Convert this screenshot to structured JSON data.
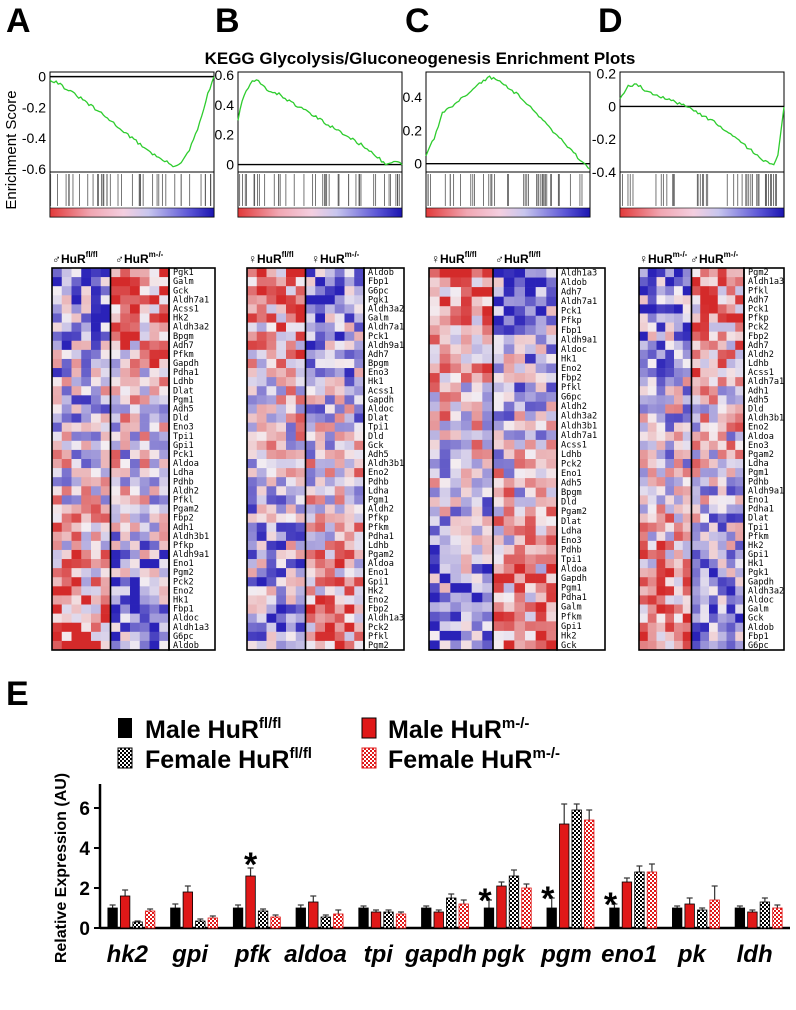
{
  "figure": {
    "title": "KEGG Glycolysis/Gluconeogenesis Enrichment Plots",
    "panel_labels": [
      "A",
      "B",
      "C",
      "D",
      "E"
    ],
    "enrichment_ylabel": "Enrichment Score"
  },
  "chart_data": [
    {
      "type": "line",
      "panel": "A",
      "title": "KEGG Glycolysis/Gluconeogenesis Enrichment Plots",
      "ylabel": "Enrichment Score",
      "ylim": [
        -0.62,
        0.03
      ],
      "yticks": [
        "0",
        "-0.2",
        "-0.4",
        "-0.6"
      ],
      "ytick_values": [
        0,
        -0.2,
        -0.4,
        -0.6
      ],
      "curve_x": [
        0,
        0.05,
        0.1,
        0.2,
        0.35,
        0.5,
        0.65,
        0.75,
        0.8,
        0.84,
        0.88,
        0.92,
        0.96,
        1.0
      ],
      "curve_y": [
        -0.02,
        -0.04,
        -0.08,
        -0.15,
        -0.27,
        -0.4,
        -0.52,
        -0.58,
        -0.56,
        -0.5,
        -0.4,
        -0.28,
        -0.12,
        0
      ]
    },
    {
      "type": "line",
      "panel": "B",
      "ylim": [
        -0.05,
        0.62
      ],
      "yticks": [
        "0.6",
        "0.4",
        "0.2",
        "0"
      ],
      "ytick_values": [
        0.6,
        0.4,
        0.2,
        0
      ],
      "curve_x": [
        0,
        0.03,
        0.08,
        0.12,
        0.18,
        0.25,
        0.35,
        0.5,
        0.65,
        0.8,
        0.9,
        0.95,
        1.0
      ],
      "curve_y": [
        0.3,
        0.45,
        0.55,
        0.56,
        0.5,
        0.47,
        0.4,
        0.3,
        0.2,
        0.1,
        0.0,
        0.02,
        0
      ],
      "zero": 0
    },
    {
      "type": "line",
      "panel": "C",
      "ylim": [
        -0.05,
        0.55
      ],
      "yticks": [
        "0.4",
        "0.2",
        "0"
      ],
      "ytick_values": [
        0.4,
        0.2,
        0
      ],
      "curve_x": [
        0,
        0.05,
        0.1,
        0.2,
        0.25,
        0.3,
        0.38,
        0.45,
        0.55,
        0.65,
        0.75,
        0.85,
        0.95,
        1.0
      ],
      "curve_y": [
        0.05,
        0.15,
        0.3,
        0.38,
        0.42,
        0.46,
        0.52,
        0.5,
        0.42,
        0.33,
        0.22,
        0.12,
        0.01,
        -0.03
      ],
      "zero": 0
    },
    {
      "type": "line",
      "panel": "D",
      "ylim": [
        -0.4,
        0.21
      ],
      "yticks": [
        "0.2",
        "0",
        "-0.2",
        "-0.4"
      ],
      "ytick_values": [
        0.2,
        0,
        -0.2,
        -0.4
      ],
      "curve_x": [
        0,
        0.05,
        0.1,
        0.15,
        0.25,
        0.4,
        0.55,
        0.7,
        0.8,
        0.88,
        0.93,
        0.96,
        1.0
      ],
      "curve_y": [
        0.05,
        0.12,
        0.14,
        0.1,
        0.06,
        0.0,
        -0.08,
        -0.18,
        -0.27,
        -0.33,
        -0.36,
        -0.32,
        0
      ],
      "zero": 0
    },
    {
      "type": "bar",
      "panel": "E",
      "title": "",
      "xlabel": "",
      "ylabel": "Relative Expression (AU)",
      "ylim": [
        0,
        7
      ],
      "yticks": [
        "0",
        "2",
        "4",
        "6"
      ],
      "ytick_values": [
        0,
        2,
        4,
        6
      ],
      "categories": [
        "hk2",
        "gpi",
        "pfk",
        "aldoa",
        "tpi",
        "gapdh",
        "pgk",
        "pgm",
        "eno1",
        "pk",
        "ldh"
      ],
      "series": [
        {
          "name": "Male HuR fl/fl",
          "values": [
            1.0,
            1.0,
            1.0,
            1.0,
            1.0,
            1.0,
            1.0,
            1.0,
            1.0,
            1.0,
            1.0
          ],
          "errors": [
            0.15,
            0.2,
            0.15,
            0.15,
            0.1,
            0.1,
            0.4,
            0.5,
            0.2,
            0.1,
            0.1
          ]
        },
        {
          "name": "Male HuR m-/-",
          "values": [
            1.6,
            1.8,
            2.6,
            1.3,
            0.8,
            0.8,
            2.1,
            5.2,
            2.3,
            1.2,
            0.8
          ],
          "errors": [
            0.3,
            0.3,
            0.4,
            0.3,
            0.1,
            0.1,
            0.2,
            1.0,
            0.2,
            0.3,
            0.1
          ]
        },
        {
          "name": "Female HuR fl/fl",
          "values": [
            0.3,
            0.35,
            0.85,
            0.55,
            0.8,
            1.5,
            2.6,
            5.9,
            2.8,
            0.9,
            1.3
          ],
          "errors": [
            0.05,
            0.1,
            0.1,
            0.1,
            0.1,
            0.2,
            0.3,
            0.3,
            0.3,
            0.1,
            0.2
          ]
        },
        {
          "name": "Female HuR m-/-",
          "values": [
            0.85,
            0.5,
            0.55,
            0.7,
            0.7,
            1.2,
            2.0,
            5.4,
            2.8,
            1.4,
            1.0
          ],
          "errors": [
            0.1,
            0.1,
            0.1,
            0.2,
            0.1,
            0.2,
            0.2,
            0.5,
            0.4,
            0.7,
            0.15
          ]
        }
      ],
      "significance": [
        {
          "category": "pfk",
          "label": "*"
        },
        {
          "category": "pgk",
          "label": "*"
        },
        {
          "category": "pgm",
          "label": "*"
        },
        {
          "category": "eno1",
          "label": "*"
        }
      ]
    }
  ],
  "heatmaps": [
    {
      "panel": "A",
      "groups": [
        {
          "sym": "♂",
          "name": "HuR",
          "sup": "fl/fl"
        },
        {
          "sym": "♂",
          "name": "HuR",
          "sup": "m-/-"
        }
      ],
      "genes": [
        "Pgk1",
        "Galm",
        "Gck",
        "Aldh7a1",
        "Acss1",
        "Hk2",
        "Aldh3a2",
        "Bpgm",
        "Adh7",
        "Pfkm",
        "Gapdh",
        "Pdha1",
        "Ldhb",
        "Dlat",
        "Pgm1",
        "Adh5",
        "Dld",
        "Eno3",
        "Tpi1",
        "Gpi1",
        "Pck1",
        "Aldoa",
        "Ldha",
        "Pdhb",
        "Aldh2",
        "Pfkl",
        "Pgam2",
        "Fbp2",
        "Adh1",
        "Aldh3b1",
        "Pfkp",
        "Aldh9a1",
        "Eno1",
        "Pgm2",
        "Pck2",
        "Eno2",
        "Hk1",
        "Fbp1",
        "Aldoc",
        "Aldh1a3",
        "G6pc",
        "Aldob"
      ]
    },
    {
      "panel": "B",
      "groups": [
        {
          "sym": "♀",
          "name": "HuR",
          "sup": "fl/fl"
        },
        {
          "sym": "♀",
          "name": "HuR",
          "sup": "m-/-"
        }
      ],
      "genes": [
        "Aldob",
        "Fbp1",
        "G6pc",
        "Pgk1",
        "Aldh3a2",
        "Galm",
        "Aldh7a1",
        "Pck1",
        "Aldh9a1",
        "Adh7",
        "Bpgm",
        "Eno3",
        "Hk1",
        "Acss1",
        "Gapdh",
        "Aldoc",
        "Dlat",
        "Tpi1",
        "Dld",
        "Gck",
        "Adh5",
        "Aldh3b1",
        "Eno2",
        "Pdhb",
        "Ldha",
        "Pgm1",
        "Aldh2",
        "Pfkp",
        "Pfkm",
        "Pdha1",
        "Ldhb",
        "Pgam2",
        "Aldoa",
        "Eno1",
        "Gpi1",
        "Hk2",
        "Eno2",
        "Fbp2",
        "Aldh1a3",
        "Pck2",
        "Pfkl",
        "Pgm2"
      ]
    },
    {
      "panel": "C",
      "groups": [
        {
          "sym": "♀",
          "name": "HuR",
          "sup": "fl/fl"
        },
        {
          "sym": "♂",
          "name": "HuR",
          "sup": "fl/fl"
        }
      ],
      "genes": [
        "Aldh1a3",
        "Aldob",
        "Adh7",
        "Aldh7a1",
        "Pck1",
        "Pfkp",
        "Fbp1",
        "Aldh9a1",
        "Aldoc",
        "Hk1",
        "Eno2",
        "Fbp2",
        "Pfkl",
        "G6pc",
        "Aldh2",
        "Aldh3a2",
        "Aldh3b1",
        "Aldh7a1",
        "Acss1",
        "Ldhb",
        "Pck2",
        "Eno1",
        "Adh5",
        "Bpgm",
        "Dld",
        "Pgam2",
        "Dlat",
        "Ldha",
        "Eno3",
        "Pdhb",
        "Tpi1",
        "Aldoa",
        "Gapdh",
        "Pgm1",
        "Pdha1",
        "Galm",
        "Pfkm",
        "Gpi1",
        "Hk2",
        "Gck"
      ]
    },
    {
      "panel": "D",
      "groups": [
        {
          "sym": "♀",
          "name": "HuR",
          "sup": "m-/-"
        },
        {
          "sym": "♂",
          "name": "HuR",
          "sup": "m-/-"
        }
      ],
      "genes": [
        "Pgm2",
        "Aldh1a3",
        "Pfkl",
        "Adh7",
        "Pck1",
        "Pfkp",
        "Pck2",
        "Fbp2",
        "Adh7",
        "Aldh2",
        "Ldhb",
        "Acss1",
        "Aldh7a1",
        "Adh1",
        "Adh5",
        "Dld",
        "Aldh3b1",
        "Eno2",
        "Aldoa",
        "Eno3",
        "Pgam2",
        "Ldha",
        "Pgm1",
        "Pdhb",
        "Aldh9a1",
        "Eno1",
        "Pdha1",
        "Dlat",
        "Tpi1",
        "Pfkm",
        "Hk2",
        "Gpi1",
        "Hk1",
        "Pgk1",
        "Gapdh",
        "Aldh3a2",
        "Aldoc",
        "Galm",
        "Gck",
        "Aldob",
        "Fbp1",
        "G6pc"
      ]
    }
  ],
  "legend": [
    {
      "label": "Male HuR",
      "sup": "fl/fl"
    },
    {
      "label": "Male HuR",
      "sup": "m-/-"
    },
    {
      "label": "Female HuR",
      "sup": "fl/fl"
    },
    {
      "label": "Female HuR",
      "sup": "m-/-"
    }
  ],
  "colors": {
    "male_flfl": "#000000",
    "male_ko": "#e01818",
    "enrich_line": "#2ecc2e",
    "heat_red": "#d42a2a",
    "heat_blue": "#2a22b8",
    "heat_white": "#f4eef2"
  }
}
